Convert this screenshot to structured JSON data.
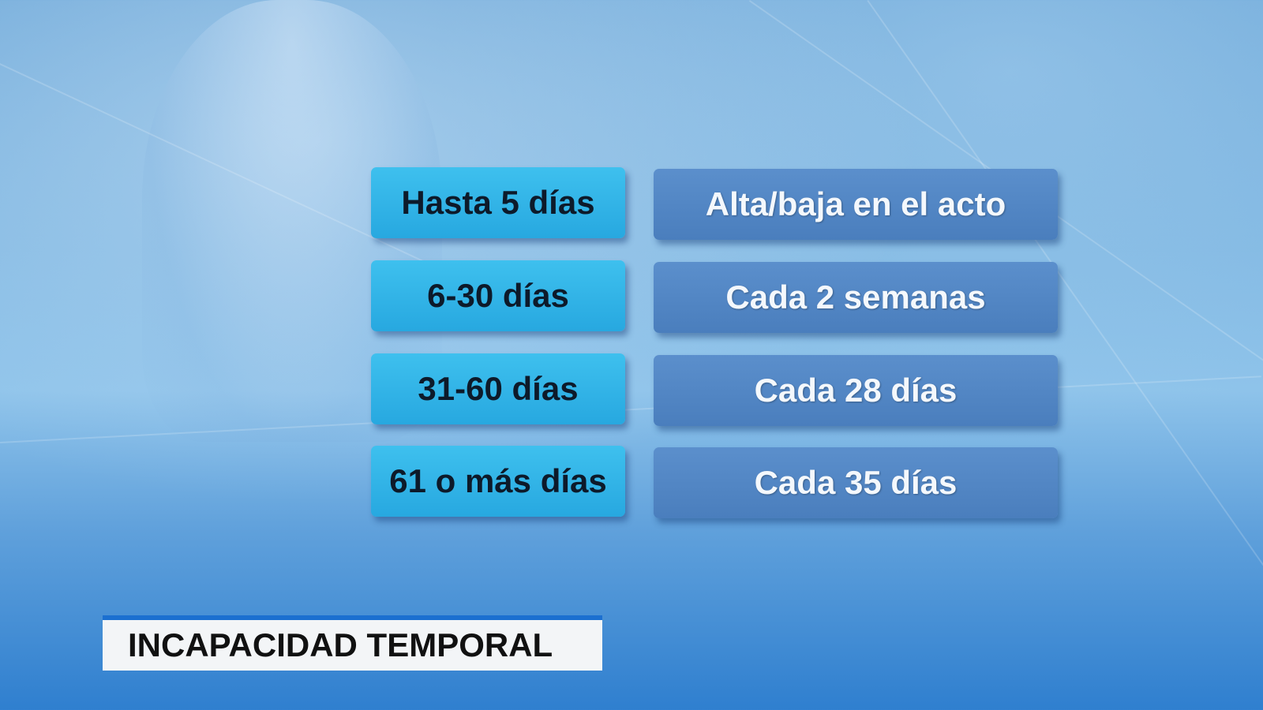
{
  "rows": [
    {
      "period": "Hasta 5 días",
      "frequency": "Alta/baja en el acto"
    },
    {
      "period": "6-30 días",
      "frequency": "Cada 2 semanas"
    },
    {
      "period": "31-60 días",
      "frequency": "Cada 28 días"
    },
    {
      "period": "61 o más días",
      "frequency": "Cada 35 días"
    }
  ],
  "caption": "INCAPACIDAD TEMPORAL",
  "colors": {
    "period_box": "#2fb3e8",
    "frequency_box": "#5186c4",
    "caption_bar": "#1b6fd0"
  }
}
